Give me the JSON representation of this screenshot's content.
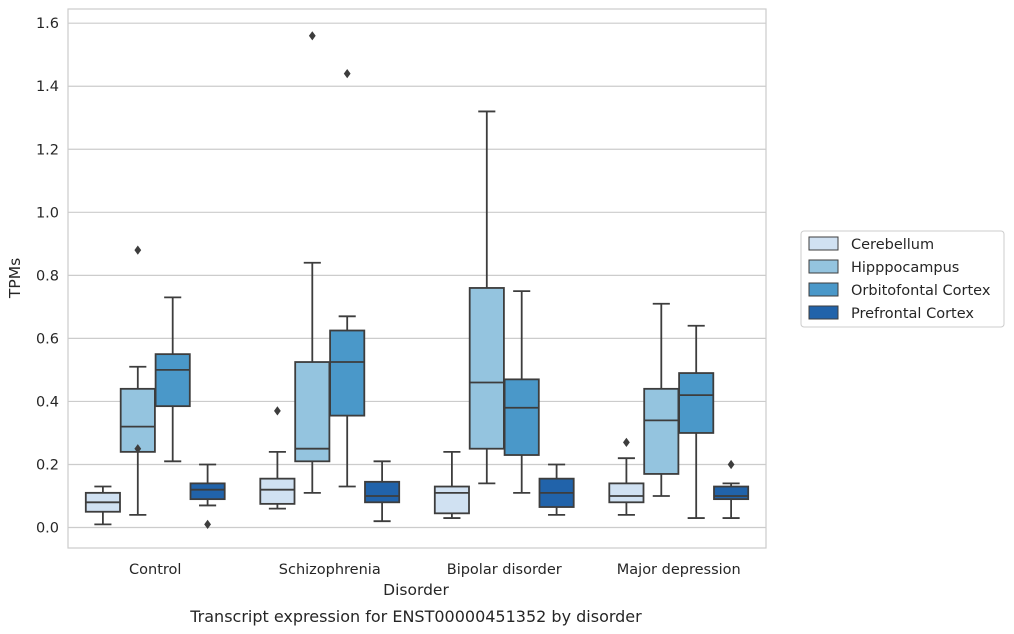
{
  "chart_data": {
    "type": "box",
    "caption": "Transcript expression for ENST00000451352 by disorder",
    "xlabel": "Disorder",
    "ylabel": "TPMs",
    "ylim": [
      -0.065,
      1.645
    ],
    "yticks": [
      0.0,
      0.2,
      0.4,
      0.6,
      0.8,
      1.0,
      1.2,
      1.4,
      1.6
    ],
    "ytick_labels": [
      "0.0",
      "0.2",
      "0.4",
      "0.6",
      "0.8",
      "1.0",
      "1.2",
      "1.4",
      "1.6"
    ],
    "grid": true,
    "legend_position": "right",
    "categories": [
      "Control",
      "Schizophrenia",
      "Bipolar disorder",
      "Major depression"
    ],
    "series": [
      {
        "name": "Cerebellum",
        "color": "#d0e1f2",
        "boxes": [
          {
            "whisker_low": 0.01,
            "q1": 0.05,
            "median": 0.08,
            "q3": 0.11,
            "whisker_high": 0.13,
            "outliers": []
          },
          {
            "whisker_low": 0.06,
            "q1": 0.075,
            "median": 0.12,
            "q3": 0.155,
            "whisker_high": 0.24,
            "outliers": [
              0.37
            ]
          },
          {
            "whisker_low": 0.03,
            "q1": 0.045,
            "median": 0.11,
            "q3": 0.13,
            "whisker_high": 0.24,
            "outliers": []
          },
          {
            "whisker_low": 0.04,
            "q1": 0.08,
            "median": 0.1,
            "q3": 0.14,
            "whisker_high": 0.22,
            "outliers": [
              0.27
            ]
          }
        ]
      },
      {
        "name": "Hipppocampus",
        "color": "#94c4df",
        "boxes": [
          {
            "whisker_low": 0.04,
            "q1": 0.24,
            "median": 0.32,
            "q3": 0.44,
            "whisker_high": 0.51,
            "outliers": [
              0.25,
              0.88
            ]
          },
          {
            "whisker_low": 0.11,
            "q1": 0.21,
            "median": 0.25,
            "q3": 0.525,
            "whisker_high": 0.84,
            "outliers": [
              1.56
            ]
          },
          {
            "whisker_low": 0.14,
            "q1": 0.25,
            "median": 0.46,
            "q3": 0.76,
            "whisker_high": 1.32,
            "outliers": []
          },
          {
            "whisker_low": 0.1,
            "q1": 0.17,
            "median": 0.34,
            "q3": 0.44,
            "whisker_high": 0.71,
            "outliers": []
          }
        ]
      },
      {
        "name": "Orbitofontal Cortex",
        "color": "#4a98c9",
        "boxes": [
          {
            "whisker_low": 0.21,
            "q1": 0.385,
            "median": 0.5,
            "q3": 0.55,
            "whisker_high": 0.73,
            "outliers": []
          },
          {
            "whisker_low": 0.13,
            "q1": 0.355,
            "median": 0.525,
            "q3": 0.625,
            "whisker_high": 0.67,
            "outliers": [
              1.44
            ]
          },
          {
            "whisker_low": 0.11,
            "q1": 0.23,
            "median": 0.38,
            "q3": 0.47,
            "whisker_high": 0.75,
            "outliers": []
          },
          {
            "whisker_low": 0.03,
            "q1": 0.3,
            "median": 0.42,
            "q3": 0.49,
            "whisker_high": 0.64,
            "outliers": []
          }
        ]
      },
      {
        "name": "Prefrontal Cortex",
        "color": "#2163aa",
        "boxes": [
          {
            "whisker_low": 0.07,
            "q1": 0.09,
            "median": 0.12,
            "q3": 0.14,
            "whisker_high": 0.2,
            "outliers": [
              0.01
            ]
          },
          {
            "whisker_low": 0.02,
            "q1": 0.08,
            "median": 0.1,
            "q3": 0.145,
            "whisker_high": 0.21,
            "outliers": []
          },
          {
            "whisker_low": 0.04,
            "q1": 0.065,
            "median": 0.11,
            "q3": 0.155,
            "whisker_high": 0.2,
            "outliers": []
          },
          {
            "whisker_low": 0.03,
            "q1": 0.09,
            "median": 0.1,
            "q3": 0.13,
            "whisker_high": 0.14,
            "outliers": [
              0.2
            ]
          }
        ]
      }
    ]
  },
  "colors": {
    "grid": "#cccccc",
    "frame": "#cccccc",
    "box_edge": "#3d3d3d",
    "text": "#262626"
  }
}
